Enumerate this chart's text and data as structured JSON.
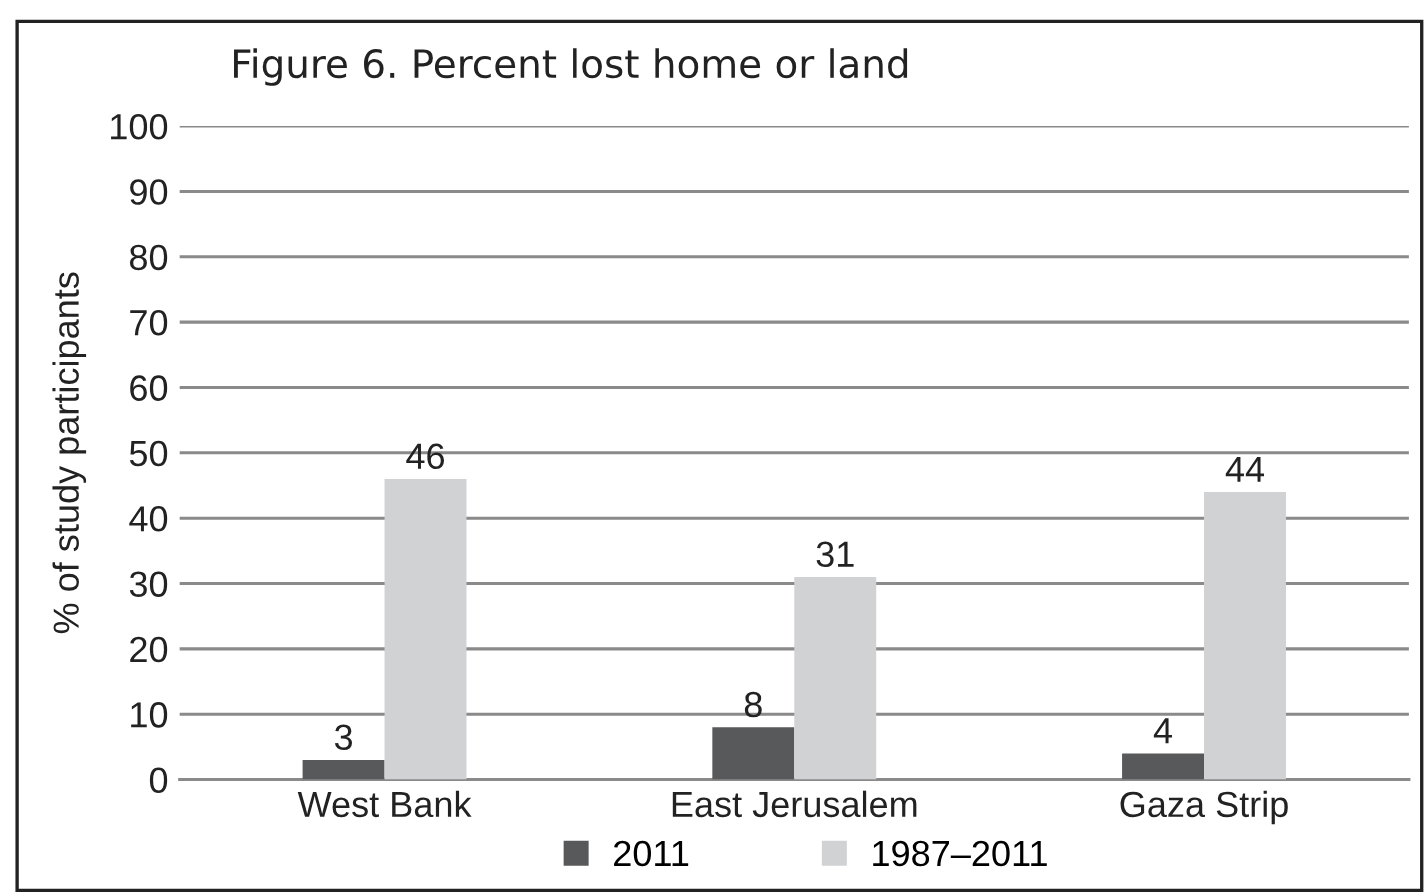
{
  "chart_data": {
    "type": "bar",
    "title": "Figure 6. Percent lost home or land",
    "ylabel": "% of study participants",
    "categories": [
      "West Bank",
      "East Jerusalem",
      "Gaza Strip"
    ],
    "series": [
      {
        "name": "2011",
        "color": "#58595b",
        "values": [
          3,
          8,
          4
        ]
      },
      {
        "name": "1987–2011",
        "color": "#d1d2d4",
        "values": [
          46,
          31,
          44
        ]
      }
    ],
    "ylim": [
      0,
      100
    ],
    "yticks": [
      0,
      10,
      20,
      30,
      40,
      50,
      60,
      70,
      80,
      90,
      100
    ],
    "grid": "y",
    "legend": "bottom",
    "data_labels": true
  }
}
